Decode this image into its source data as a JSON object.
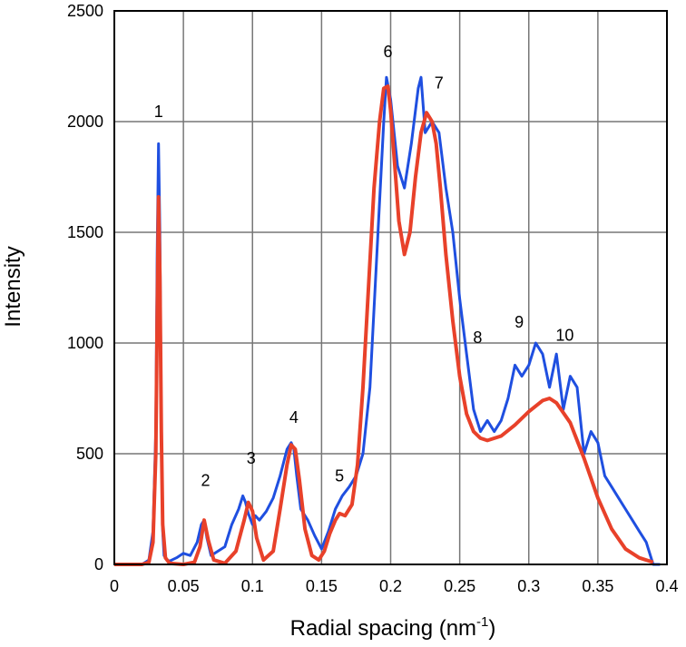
{
  "chart_data": {
    "type": "line",
    "title": "",
    "xlabel": "Radial spacing (nm",
    "xlabel_sup": "-1",
    "xlabel_close": ")",
    "ylabel": "Intensity",
    "xlim": [
      0,
      0.4
    ],
    "ylim": [
      0,
      2500
    ],
    "grid": true,
    "legend": "none",
    "x_ticks": [
      "0",
      "0.05",
      "0.1",
      "0.15",
      "0.2",
      "0.25",
      "0.3",
      "0.35",
      "0.4"
    ],
    "y_ticks": [
      "0",
      "500",
      "1000",
      "1500",
      "2000",
      "2500"
    ],
    "series": [
      {
        "color": "#1f4fe0",
        "x": [
          0,
          0.01,
          0.02,
          0.025,
          0.028,
          0.03,
          0.031,
          0.032,
          0.033,
          0.034,
          0.035,
          0.036,
          0.038,
          0.04,
          0.045,
          0.05,
          0.055,
          0.06,
          0.063,
          0.065,
          0.067,
          0.07,
          0.075,
          0.08,
          0.085,
          0.09,
          0.093,
          0.095,
          0.097,
          0.1,
          0.102,
          0.105,
          0.11,
          0.115,
          0.12,
          0.125,
          0.128,
          0.13,
          0.132,
          0.135,
          0.14,
          0.145,
          0.15,
          0.155,
          0.16,
          0.165,
          0.17,
          0.175,
          0.18,
          0.185,
          0.19,
          0.195,
          0.197,
          0.2,
          0.205,
          0.21,
          0.215,
          0.22,
          0.222,
          0.225,
          0.23,
          0.235,
          0.24,
          0.245,
          0.25,
          0.255,
          0.26,
          0.265,
          0.27,
          0.275,
          0.28,
          0.285,
          0.29,
          0.295,
          0.3,
          0.305,
          0.31,
          0.315,
          0.32,
          0.325,
          0.33,
          0.335,
          0.34,
          0.345,
          0.35,
          0.355,
          0.36,
          0.365,
          0.37,
          0.375,
          0.38,
          0.385,
          0.39,
          0.395
        ],
        "y": [
          0,
          0,
          0,
          20,
          150,
          600,
          1400,
          1900,
          1500,
          600,
          150,
          40,
          20,
          15,
          30,
          50,
          40,
          100,
          180,
          200,
          120,
          40,
          60,
          80,
          180,
          250,
          310,
          280,
          230,
          180,
          220,
          200,
          240,
          300,
          400,
          520,
          550,
          520,
          400,
          250,
          200,
          130,
          70,
          150,
          250,
          310,
          350,
          400,
          500,
          800,
          1400,
          2000,
          2200,
          2100,
          1800,
          1700,
          1900,
          2150,
          2200,
          1950,
          2000,
          1950,
          1700,
          1500,
          1200,
          950,
          700,
          600,
          650,
          600,
          650,
          750,
          900,
          850,
          900,
          1000,
          950,
          800,
          950,
          700,
          850,
          800,
          500,
          600,
          550,
          400,
          350,
          300,
          250,
          200,
          150,
          100,
          0,
          0
        ]
      },
      {
        "color": "#e8412a",
        "x": [
          0,
          0.02,
          0.025,
          0.028,
          0.03,
          0.031,
          0.032,
          0.033,
          0.034,
          0.035,
          0.037,
          0.04,
          0.05,
          0.058,
          0.062,
          0.065,
          0.068,
          0.072,
          0.08,
          0.088,
          0.094,
          0.097,
          0.1,
          0.103,
          0.108,
          0.115,
          0.12,
          0.125,
          0.128,
          0.131,
          0.134,
          0.138,
          0.143,
          0.148,
          0.152,
          0.156,
          0.16,
          0.163,
          0.167,
          0.172,
          0.176,
          0.18,
          0.184,
          0.188,
          0.192,
          0.195,
          0.198,
          0.2,
          0.203,
          0.206,
          0.21,
          0.214,
          0.218,
          0.222,
          0.226,
          0.23,
          0.233,
          0.236,
          0.24,
          0.245,
          0.25,
          0.255,
          0.26,
          0.265,
          0.27,
          0.28,
          0.29,
          0.3,
          0.31,
          0.315,
          0.32,
          0.33,
          0.34,
          0.35,
          0.36,
          0.37,
          0.38,
          0.39
        ],
        "y": [
          0,
          0,
          10,
          100,
          500,
          1100,
          1660,
          1300,
          600,
          180,
          30,
          5,
          0,
          10,
          80,
          200,
          110,
          20,
          5,
          60,
          200,
          280,
          240,
          120,
          20,
          60,
          250,
          450,
          540,
          520,
          380,
          160,
          40,
          20,
          60,
          140,
          200,
          230,
          220,
          270,
          450,
          800,
          1250,
          1700,
          2000,
          2150,
          2160,
          2050,
          1800,
          1550,
          1400,
          1500,
          1750,
          1950,
          2040,
          2000,
          1900,
          1700,
          1400,
          1100,
          850,
          680,
          600,
          570,
          560,
          580,
          630,
          690,
          740,
          750,
          730,
          640,
          480,
          300,
          160,
          70,
          30,
          10
        ]
      }
    ],
    "annotations": [
      {
        "text": "1",
        "x": 0.032,
        "y": 2020
      },
      {
        "text": "2",
        "x": 0.066,
        "y": 355
      },
      {
        "text": "3",
        "x": 0.099,
        "y": 455
      },
      {
        "text": "4",
        "x": 0.13,
        "y": 640
      },
      {
        "text": "5",
        "x": 0.163,
        "y": 375
      },
      {
        "text": "6",
        "x": 0.198,
        "y": 2290
      },
      {
        "text": "7",
        "x": 0.235,
        "y": 2150
      },
      {
        "text": "8",
        "x": 0.263,
        "y": 1000
      },
      {
        "text": "9",
        "x": 0.293,
        "y": 1070
      },
      {
        "text": "10",
        "x": 0.326,
        "y": 1010
      }
    ]
  }
}
